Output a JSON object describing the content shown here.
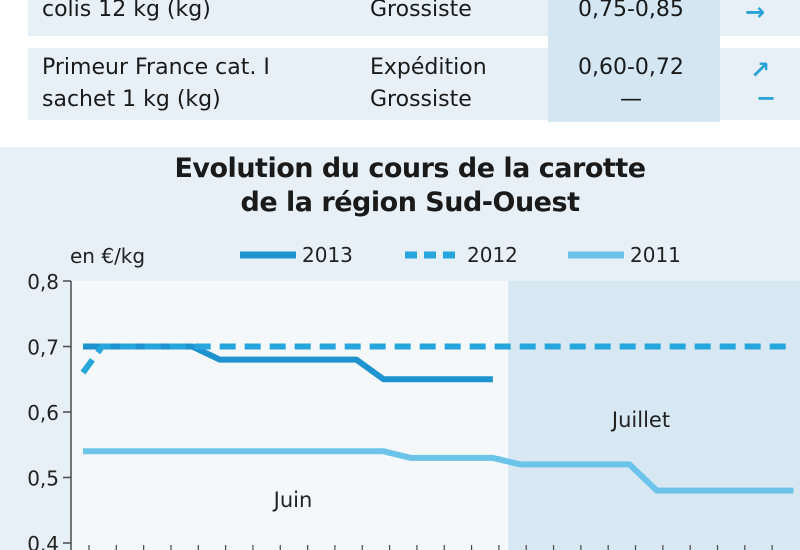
{
  "table": {
    "rows": [
      {
        "product": [
          "colis 12 kg (kg)"
        ],
        "stage": [
          "Grossiste"
        ],
        "price": [
          "0,75-0,85"
        ],
        "trend": [
          "→"
        ]
      },
      {
        "product": [
          "Primeur France cat. I",
          "sachet 1 kg (kg)"
        ],
        "stage": [
          "Expédition",
          "Grossiste"
        ],
        "price": [
          "0,60-0,72",
          "—"
        ],
        "trend": [
          "↗",
          "−"
        ]
      }
    ]
  },
  "chart_data": {
    "type": "line",
    "title": [
      "Evolution du cours de la carotte",
      "de la région Sud-Ouest"
    ],
    "ylabel": "en €/kg",
    "ylim": [
      0.4,
      0.8
    ],
    "yticks": [
      "0,8",
      "0,7",
      "0,6",
      "0,5",
      "0,4"
    ],
    "yticks_values": [
      0.8,
      0.7,
      0.6,
      0.5,
      0.4
    ],
    "x_count": 26,
    "months": [
      {
        "label": "Juin",
        "range": [
          0,
          16
        ]
      },
      {
        "label": "Juillet",
        "range": [
          16,
          26
        ]
      }
    ],
    "legend_position": "top",
    "series": [
      {
        "name": "2013",
        "style": "solid",
        "color": "#1e93cf",
        "x": [
          0,
          4,
          5,
          10,
          11,
          12,
          15
        ],
        "y": [
          0.7,
          0.7,
          0.68,
          0.68,
          0.65,
          0.65,
          0.65
        ]
      },
      {
        "name": "2012",
        "style": "dashed",
        "color": "#26a6dc",
        "x": [
          0,
          0.7,
          10,
          11,
          26
        ],
        "y": [
          0.66,
          0.7,
          0.7,
          0.7,
          0.7
        ]
      },
      {
        "name": "2011",
        "style": "solid",
        "color": "#6cc4ea",
        "x": [
          0,
          11,
          12,
          15,
          16,
          20,
          21,
          26
        ],
        "y": [
          0.54,
          0.54,
          0.53,
          0.53,
          0.52,
          0.52,
          0.48,
          0.48
        ]
      }
    ]
  }
}
